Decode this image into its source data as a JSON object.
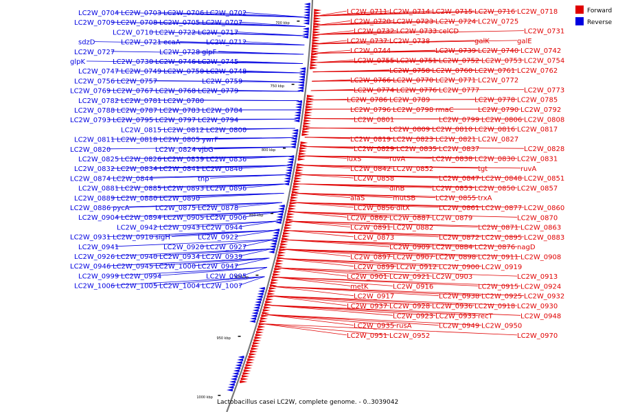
{
  "title": "Lactobacillus casei LC2W, complete genome. - 0..3039042",
  "legend": [
    {
      "label": "Forward",
      "color": "#e00000"
    },
    {
      "label": "Reverse",
      "color": "#0000e0"
    }
  ],
  "ticks": [
    "700 kbp",
    "750 kbp",
    "800 kbp",
    "850 kbp",
    "900 kbp",
    "950 kbp",
    "1000 kbp"
  ],
  "colors": {
    "forward": "#e00000",
    "reverse": "#0000e0",
    "axis": "#777777"
  },
  "reverse_labels": [
    "LC2W_0702",
    "LC2W_0706",
    "LC2W_0703",
    "LC2W_0704",
    "LC2W_0707",
    "LC2W_0705",
    "LC2W_0708",
    "LC2W_0709",
    "LC2W_0717",
    "LC2W_0722",
    "LC2W_0710",
    "sdzD",
    "LC2W_0712",
    "ecaA",
    "LC2W_0721",
    "LC2W_0727",
    "glpF",
    "LC2W_0728",
    "LC2W_0730",
    "glpK",
    "LC2W_0745",
    "LC2W_0746",
    "LC2W_0749",
    "LC2W_0747",
    "LC2W_0748",
    "LC2W_0750",
    "LC2W_0757",
    "LC2W_0756",
    "LC2W_0759",
    "LC2W_0768",
    "LC2W_0767",
    "LC2W_0769",
    "LC2W_0779",
    "LC2W_0780",
    "LC2W_0781",
    "LC2W_0782",
    "LC2W_0784",
    "LC2W_0783",
    "LC2W_0787",
    "LC2W_0788",
    "LC2W_0794",
    "LC2W_0797",
    "LC2W_0795",
    "LC2W_0793",
    "LC2W_0800",
    "LC2W_0812",
    "LC2W_0815",
    "LC2W_0811",
    "ywrF",
    "LC2W_0805",
    "LC2W_0818",
    "LC2W_0820",
    "vjbG",
    "LC2W_0824",
    "LC2W_0826",
    "LC2W_0825",
    "LC2W_0836",
    "LC2W_0839",
    "LC2W_0834",
    "LC2W_0832",
    "LC2W_0840",
    "LC2W_0841",
    "LC2W_0844",
    "LC2W_0874",
    "tnp",
    "LC2W_0893",
    "LC2W_0885",
    "LC2W_0881",
    "LC2W_0896",
    "LC2W_0890",
    "LC2W_0880",
    "LC2W_0889",
    "LC2W_0878",
    "LC2W_0875",
    "pycA",
    "LC2W_0886",
    "LC2W_0906",
    "LC2W_0905",
    "LC2W_0894",
    "LC2W_0904",
    "LC2W_0944",
    "LC2W_0943",
    "LC2W_0942",
    "LC2W_0931",
    "LC2W_0922",
    "sigH",
    "LC2W_0910",
    "LC2W_0941",
    "LC2W_0927",
    "LC2W_0920",
    "LC2W_0940",
    "LC2W_0926",
    "LC2W_0939",
    "LC2W_0934",
    "LC2W_0945",
    "LC2W_0946",
    "LC2W_0947",
    "LC2W_1000",
    "LC2W_0994",
    "LC2W_0999",
    "LC2W_0995",
    "LC2W_1004",
    "LC2W_1005",
    "LC2W_1006",
    "LC2W_1007"
  ],
  "forward_labels": [
    "LC2W_0711",
    "LC2W_0714",
    "LC2W_0715",
    "LC2W_0716",
    "LC2W_0718",
    "LC2W_0720",
    "LC2W_0723",
    "LC2W_0724",
    "LC2W_0725",
    "LC2W_0731",
    "LC2W_0732",
    "LC2W_0733",
    "celCD",
    "galK",
    "galE",
    "LC2W_0737",
    "LC2W_0738",
    "LC2W_0739",
    "LC2W_0740",
    "LC2W_0742",
    "LC2W_0744",
    "LC2W_0751",
    "LC2W_0752",
    "LC2W_0753",
    "LC2W_0754",
    "LC2W_0755",
    "LC2W_0758",
    "LC2W_0760",
    "LC2W_0761",
    "LC2W_0762",
    "LC2W_0766",
    "LC2W_0770",
    "LC2W_0771",
    "LC2W_0772",
    "LC2W_0773",
    "LC2W_0774",
    "LC2W_0776",
    "LC2W_0777",
    "LC2W_0778",
    "LC2W_0785",
    "LC2W_0786",
    "LC2W_0789",
    "rmaC",
    "LC2W_0790",
    "LC2W_0792",
    "LC2W_0796",
    "LC2W_0798",
    "LC2W_0799",
    "LC2W_0806",
    "LC2W_0808",
    "LC2W_0801",
    "LC2W_0809",
    "LC2W_0810",
    "LC2W_0816",
    "LC2W_0817",
    "LC2W_0819",
    "LC2W_0823",
    "LC2W_0821",
    "LC2W_0827",
    "LC2W_0828",
    "LC2W_0829",
    "LC2W_0835",
    "LC2W_0837",
    "LC2W_0830",
    "LC2W_0831",
    "luxS",
    "ruvA",
    "LC2W_0838",
    "tgt",
    "ruvA",
    "LC2W_0842",
    "LC2W_0852",
    "LC2W_0847",
    "LC2W_0848",
    "LC2W_0851",
    "LC2W_0858",
    "dinB",
    "LC2W_0853",
    "LC2W_0850",
    "LC2W_0857",
    "alaS",
    "mutSB",
    "LC2W_0855",
    "trxA",
    "LC2W_0860",
    "LC2W_0856",
    "dltX",
    "LC2W_0861",
    "LC2W_0877",
    "LC2W_0870",
    "LC2W_0862",
    "LC2W_0887",
    "LC2W_0879",
    "LC2W_0871",
    "LC2W_0863",
    "LC2W_0891",
    "LC2W_0882",
    "LC2W_0872",
    "LC2W_0895",
    "LC2W_0883",
    "LC2W_0873",
    "LC2W_0909",
    "LC2W_0884",
    "LC2W_0876",
    "nagD",
    "LC2W_0897",
    "LC2W_0907",
    "LC2W_0898",
    "LC2W_0911",
    "LC2W_0908",
    "LC2W_0899",
    "LC2W_0912",
    "LC2W_0900",
    "LC2W_0919",
    "LC2W_0913",
    "LC2W_0901",
    "LC2W_0921",
    "LC2W_0903",
    "LC2W_0915",
    "LC2W_0924",
    "metK",
    "LC2W_0916",
    "LC2W_0938",
    "LC2W_0925",
    "LC2W_0932",
    "LC2W_0917",
    "LC2W_0928",
    "LC2W_0936",
    "LC2W_0918",
    "LC2W_0930",
    "LC2W_0937",
    "LC2W_0923",
    "LC2W_0933",
    "recT",
    "LC2W_0948",
    "LC2W_0935",
    "rusA",
    "LC2W_0949",
    "LC2W_0950",
    "LC2W_0970",
    "LC2W_0951",
    "LC2W_0952"
  ]
}
